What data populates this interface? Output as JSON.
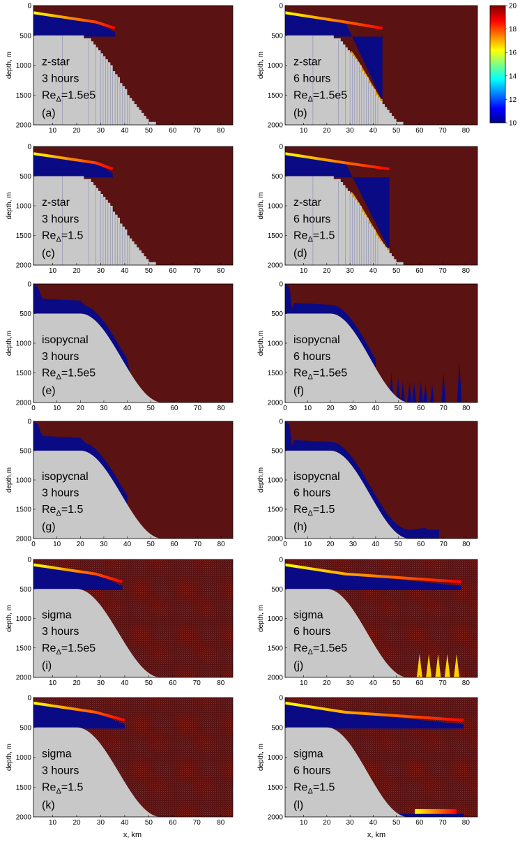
{
  "figure": {
    "xlabel": "x, km",
    "colorbar": {
      "ticks": [
        10,
        12,
        14,
        16,
        18,
        20
      ],
      "range": [
        10,
        20
      ]
    }
  },
  "chart_data": [
    {
      "type": "heatmap",
      "id": "a",
      "coordinate": "z-star",
      "time": "3 hours",
      "re": "1.5e5",
      "label": "(a)",
      "ylabel": "depth, m",
      "xlim": [
        2,
        85
      ],
      "ylim": [
        2000,
        0
      ],
      "xticks": [
        10,
        20,
        30,
        40,
        50,
        60,
        70,
        80
      ],
      "yticks": [
        0,
        500,
        1000,
        1500,
        2000
      ],
      "front_x_km": 36,
      "cold_layer_depth_m": [
        120,
        420
      ]
    },
    {
      "type": "heatmap",
      "id": "b",
      "coordinate": "z-star",
      "time": "6 hours",
      "re": "1.5e5",
      "label": "(b)",
      "ylabel": "depth, m",
      "xlim": [
        2,
        85
      ],
      "ylim": [
        2000,
        0
      ],
      "xticks": [
        10,
        20,
        30,
        40,
        50,
        60,
        70,
        80
      ],
      "yticks": [
        0,
        500,
        1000,
        1500,
        2000
      ],
      "front_x_km": 44,
      "plume_max_depth_m": 1600
    },
    {
      "type": "heatmap",
      "id": "c",
      "coordinate": "z-star",
      "time": "3 hours",
      "re": "1.5",
      "label": "(c)",
      "ylabel": "depth, m",
      "xlim": [
        2,
        85
      ],
      "ylim": [
        2000,
        0
      ],
      "xticks": [
        10,
        20,
        30,
        40,
        50,
        60,
        70,
        80
      ],
      "yticks": [
        0,
        500,
        1000,
        1500,
        2000
      ],
      "front_x_km": 35
    },
    {
      "type": "heatmap",
      "id": "d",
      "coordinate": "z-star",
      "time": "6 hours",
      "re": "1.5",
      "label": "(d)",
      "ylabel": "depth, m",
      "xlim": [
        2,
        85
      ],
      "ylim": [
        2000,
        0
      ],
      "xticks": [
        10,
        20,
        30,
        40,
        50,
        60,
        70,
        80
      ],
      "yticks": [
        0,
        500,
        1000,
        1500,
        2000
      ],
      "front_x_km": 47,
      "plume_max_depth_m": 1750
    },
    {
      "type": "heatmap",
      "id": "e",
      "coordinate": "isopycnal",
      "time": "3 hours",
      "re": "1.5e5",
      "label": "(e)",
      "ylabel": "depth,m",
      "xlim": [
        0,
        85
      ],
      "ylim": [
        2000,
        0
      ],
      "xticks": [
        0,
        10,
        20,
        30,
        40,
        50,
        60,
        70,
        80
      ],
      "yticks": [
        0,
        500,
        1000,
        1500,
        2000
      ],
      "front_x_km": 41
    },
    {
      "type": "heatmap",
      "id": "f",
      "coordinate": "isopycnal",
      "time": "6 hours",
      "re": "1.5e5",
      "label": "(f)",
      "ylabel": "depth,m",
      "xlim": [
        0,
        85
      ],
      "ylim": [
        2000,
        0
      ],
      "xticks": [
        0,
        10,
        20,
        30,
        40,
        50,
        60,
        70,
        80
      ],
      "yticks": [
        0,
        500,
        1000,
        1500,
        2000
      ],
      "spikes": [
        [
          47,
          1500
        ],
        [
          50,
          1600
        ],
        [
          52,
          1650
        ],
        [
          55,
          1650
        ],
        [
          57,
          1660
        ],
        [
          60,
          1650
        ],
        [
          62,
          1700
        ],
        [
          65,
          1700
        ],
        [
          70,
          1500
        ],
        [
          77,
          1300
        ]
      ]
    },
    {
      "type": "heatmap",
      "id": "g",
      "coordinate": "isopycnal",
      "time": "3 hours",
      "re": "1.5",
      "label": "(g)",
      "ylabel": "depth,m",
      "xlim": [
        0,
        85
      ],
      "ylim": [
        2000,
        0
      ],
      "xticks": [
        0,
        10,
        20,
        30,
        40,
        50,
        60,
        70,
        80
      ],
      "yticks": [
        0,
        500,
        1000,
        1500,
        2000
      ],
      "front_x_km": 40
    },
    {
      "type": "heatmap",
      "id": "h",
      "coordinate": "isopycnal",
      "time": "6 hours",
      "re": "1.5",
      "label": "(h)",
      "ylabel": "depth,m",
      "xlim": [
        0,
        85
      ],
      "ylim": [
        2000,
        0
      ],
      "xticks": [
        0,
        10,
        20,
        30,
        40,
        50,
        60,
        70,
        80
      ],
      "yticks": [
        0,
        500,
        1000,
        1500,
        2000
      ],
      "front_x_km": 68
    },
    {
      "type": "heatmap",
      "id": "i",
      "coordinate": "sigma",
      "time": "3 hours",
      "re": "1.5e5",
      "label": "(i)",
      "ylabel": "depth, m",
      "xlim": [
        2,
        85
      ],
      "ylim": [
        2000,
        0
      ],
      "xticks": [
        10,
        20,
        30,
        40,
        50,
        60,
        70,
        80
      ],
      "yticks": [
        0,
        500,
        1000,
        1500,
        2000
      ],
      "front_x_km": 39
    },
    {
      "type": "heatmap",
      "id": "j",
      "coordinate": "sigma",
      "time": "6 hours",
      "re": "1.5e5",
      "label": "(j)",
      "ylabel": "depth, m",
      "xlim": [
        2,
        85
      ],
      "ylim": [
        2000,
        0
      ],
      "xticks": [
        10,
        20,
        30,
        40,
        50,
        60,
        70,
        80
      ],
      "yticks": [
        0,
        500,
        1000,
        1500,
        2000
      ],
      "front_x_km": 78
    },
    {
      "type": "heatmap",
      "id": "k",
      "coordinate": "sigma",
      "time": "3 hours",
      "re": "1.5",
      "label": "(k)",
      "ylabel": "depth, m",
      "xlim": [
        2,
        85
      ],
      "ylim": [
        2000,
        0
      ],
      "xticks": [
        10,
        20,
        30,
        40,
        50,
        60,
        70,
        80
      ],
      "yticks": [
        0,
        500,
        1000,
        1500,
        2000
      ],
      "front_x_km": 40
    },
    {
      "type": "heatmap",
      "id": "l",
      "coordinate": "sigma",
      "time": "6 hours",
      "re": "1.5",
      "label": "(l)",
      "ylabel": "depth, m",
      "xlim": [
        2,
        85
      ],
      "ylim": [
        2000,
        0
      ],
      "xticks": [
        10,
        20,
        30,
        40,
        50,
        60,
        70,
        80
      ],
      "yticks": [
        0,
        500,
        1000,
        1500,
        2000
      ],
      "front_x_km": 79
    }
  ]
}
